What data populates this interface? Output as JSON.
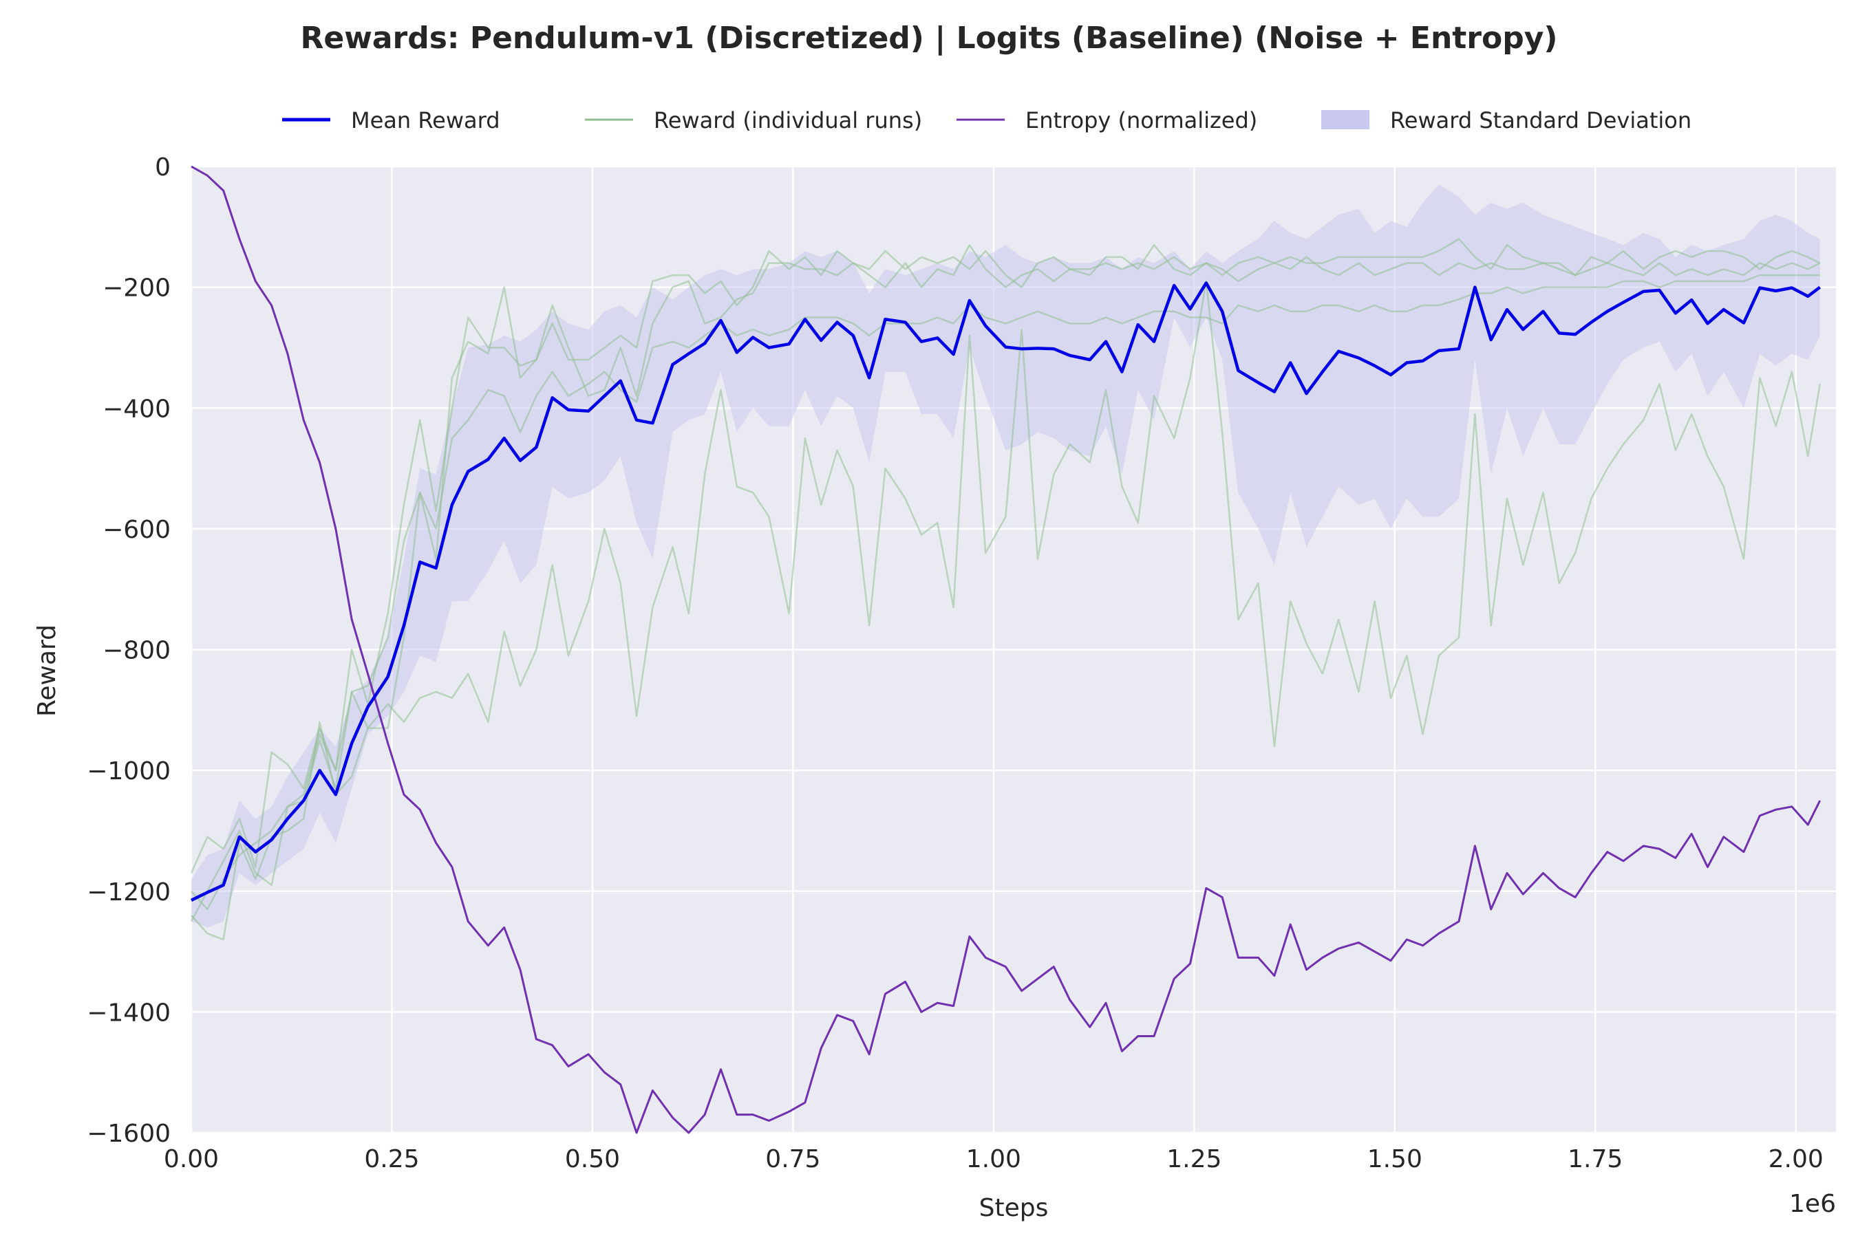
{
  "chart_data": {
    "type": "line",
    "title": "Rewards: Pendulum-v1 (Discretized) | Logits (Baseline) (Noise + Entropy)",
    "xlabel": "Steps",
    "ylabel": "Reward",
    "x_scale_label": "1e6",
    "xlim": [
      0,
      2050000
    ],
    "ylim": [
      -1600,
      0
    ],
    "x_ticks": [
      0,
      250000,
      500000,
      750000,
      1000000,
      1250000,
      1500000,
      1750000,
      2000000
    ],
    "x_tick_labels": [
      "0.00",
      "0.25",
      "0.50",
      "0.75",
      "1.00",
      "1.25",
      "1.50",
      "1.75",
      "2.00"
    ],
    "y_ticks": [
      0,
      -200,
      -400,
      -600,
      -800,
      -1000,
      -1200,
      -1400,
      -1600
    ],
    "y_tick_labels": [
      "0",
      "−200",
      "−400",
      "−600",
      "−800",
      "−1000",
      "−1200",
      "−1400",
      "−1600"
    ],
    "grid": true,
    "legend_placement": "top",
    "legend": [
      {
        "label": "Mean Reward",
        "kind": "line",
        "color": "#0000e6"
      },
      {
        "label": "Reward (individual runs)",
        "kind": "line",
        "color": "#8fbf8f"
      },
      {
        "label": "Entropy (normalized)",
        "kind": "line",
        "color": "#7030b0"
      },
      {
        "label": "Reward Standard Deviation",
        "kind": "band",
        "color": "#c8c8f0"
      }
    ],
    "x": [
      0,
      20000,
      40000,
      60000,
      80000,
      100000,
      120000,
      140000,
      160000,
      180000,
      200000,
      220000,
      245000,
      265000,
      285000,
      305000,
      325000,
      345000,
      370000,
      390000,
      410000,
      430000,
      450000,
      470000,
      495000,
      515000,
      535000,
      555000,
      575000,
      600000,
      620000,
      640000,
      660000,
      680000,
      700000,
      720000,
      745000,
      765000,
      785000,
      805000,
      825000,
      845000,
      865000,
      890000,
      910000,
      930000,
      950000,
      970000,
      990000,
      1015000,
      1035000,
      1055000,
      1075000,
      1095000,
      1120000,
      1140000,
      1160000,
      1180000,
      1200000,
      1225000,
      1245000,
      1265000,
      1285000,
      1305000,
      1330000,
      1350000,
      1370000,
      1390000,
      1410000,
      1430000,
      1455000,
      1475000,
      1495000,
      1515000,
      1535000,
      1555000,
      1580000,
      1600000,
      1620000,
      1640000,
      1660000,
      1685000,
      1705000,
      1725000,
      1745000,
      1765000,
      1785000,
      1810000,
      1830000,
      1850000,
      1870000,
      1890000,
      1910000,
      1935000,
      1955000,
      1975000,
      1995000,
      2015000,
      2030000
    ],
    "series": [
      {
        "name": "Mean Reward",
        "role": "mean",
        "color": "#0000e6",
        "values": [
          -1215,
          -1202,
          -1190,
          -1110,
          -1135,
          -1115,
          -1080,
          -1050,
          -1000,
          -1040,
          -955,
          -895,
          -845,
          -760,
          -655,
          -665,
          -560,
          -505,
          -485,
          -450,
          -487,
          -465,
          -383,
          -403,
          -405,
          -380,
          -355,
          -420,
          -425,
          -328,
          -310,
          -293,
          -255,
          -308,
          -283,
          -300,
          -294,
          -253,
          -288,
          -258,
          -280,
          -350,
          -253,
          -258,
          -290,
          -284,
          -311,
          -222,
          -264,
          -299,
          -302,
          -301,
          -302,
          -313,
          -320,
          -290,
          -340,
          -262,
          -290,
          -197,
          -236,
          -193,
          -240,
          -338,
          -358,
          -373,
          -325,
          -376,
          -340,
          -306,
          -317,
          -330,
          -345,
          -325,
          -322,
          -305,
          -302,
          -200,
          -287,
          -237,
          -270,
          -240,
          -276,
          -278,
          -258,
          -240,
          -225,
          -207,
          -205,
          -243,
          -221,
          -260,
          -237,
          -259,
          -201,
          -206,
          -201,
          -215,
          -200
        ]
      },
      {
        "name": "Reward Standard Deviation (upper)",
        "role": "std_upper",
        "color": "#c8c8f0",
        "values": [
          -1180,
          -1140,
          -1130,
          -1050,
          -1080,
          -1060,
          -1010,
          -970,
          -930,
          -960,
          -880,
          -850,
          -780,
          -650,
          -500,
          -510,
          -400,
          -300,
          -295,
          -280,
          -290,
          -270,
          -240,
          -260,
          -270,
          -240,
          -230,
          -250,
          -200,
          -220,
          -200,
          -180,
          -170,
          -180,
          -170,
          -170,
          -160,
          -140,
          -150,
          -140,
          -160,
          -210,
          -170,
          -180,
          -170,
          -160,
          -170,
          -140,
          -150,
          -130,
          -150,
          -160,
          -150,
          -160,
          -160,
          -150,
          -170,
          -150,
          -160,
          -140,
          -170,
          -140,
          -160,
          -140,
          -120,
          -90,
          -110,
          -120,
          -100,
          -80,
          -70,
          -110,
          -90,
          -100,
          -60,
          -30,
          -50,
          -80,
          -60,
          -70,
          -60,
          -80,
          -90,
          -100,
          -110,
          -120,
          -130,
          -110,
          -120,
          -150,
          -130,
          -140,
          -130,
          -120,
          -90,
          -80,
          -90,
          -110,
          -120
        ]
      },
      {
        "name": "Reward Standard Deviation (lower)",
        "role": "std_lower",
        "color": "#c8c8f0",
        "values": [
          -1250,
          -1260,
          -1250,
          -1170,
          -1190,
          -1170,
          -1150,
          -1130,
          -1070,
          -1120,
          -1030,
          -940,
          -910,
          -870,
          -810,
          -820,
          -720,
          -720,
          -670,
          -620,
          -690,
          -660,
          -530,
          -550,
          -540,
          -520,
          -480,
          -590,
          -650,
          -440,
          -420,
          -410,
          -340,
          -440,
          -400,
          -430,
          -430,
          -370,
          -430,
          -380,
          -400,
          -490,
          -340,
          -340,
          -410,
          -410,
          -450,
          -300,
          -380,
          -470,
          -460,
          -440,
          -450,
          -470,
          -480,
          -430,
          -510,
          -370,
          -420,
          -250,
          -300,
          -250,
          -320,
          -540,
          -600,
          -660,
          -540,
          -630,
          -580,
          -530,
          -560,
          -550,
          -600,
          -550,
          -580,
          -580,
          -550,
          -320,
          -510,
          -400,
          -480,
          -400,
          -460,
          -460,
          -410,
          -360,
          -320,
          -300,
          -290,
          -340,
          -310,
          -380,
          -340,
          -400,
          -310,
          -330,
          -310,
          -320,
          -280
        ]
      },
      {
        "name": "Reward (individual runs) 1",
        "role": "run",
        "color": "#8fbf8f",
        "values": [
          -1170,
          -1110,
          -1130,
          -1080,
          -1160,
          -970,
          -990,
          -1030,
          -930,
          -1000,
          -800,
          -890,
          -740,
          -560,
          -420,
          -570,
          -400,
          -250,
          -300,
          -300,
          -330,
          -320,
          -230,
          -300,
          -380,
          -370,
          -300,
          -380,
          -260,
          -200,
          -190,
          -260,
          -250,
          -220,
          -210,
          -160,
          -160,
          -170,
          -170,
          -180,
          -160,
          -180,
          -200,
          -160,
          -200,
          -170,
          -180,
          -130,
          -170,
          -200,
          -180,
          -170,
          -190,
          -170,
          -180,
          -150,
          -150,
          -170,
          -130,
          -170,
          -180,
          -160,
          -170,
          -190,
          -170,
          -160,
          -150,
          -160,
          -160,
          -150,
          -150,
          -150,
          -150,
          -150,
          -150,
          -140,
          -120,
          -150,
          -170,
          -130,
          -150,
          -160,
          -170,
          -180,
          -150,
          -160,
          -140,
          -170,
          -150,
          -140,
          -150,
          -140,
          -140,
          -150,
          -170,
          -150,
          -140,
          -150,
          -160
        ]
      },
      {
        "name": "Reward (individual runs) 2",
        "role": "run",
        "color": "#8fbf8f",
        "values": [
          -1250,
          -1200,
          -1150,
          -1100,
          -1170,
          -1190,
          -1060,
          -1050,
          -950,
          -1030,
          -870,
          -930,
          -930,
          -780,
          -540,
          -650,
          -350,
          -290,
          -310,
          -200,
          -350,
          -320,
          -260,
          -320,
          -320,
          -300,
          -280,
          -300,
          -190,
          -180,
          -180,
          -210,
          -190,
          -230,
          -200,
          -140,
          -170,
          -150,
          -180,
          -140,
          -160,
          -170,
          -140,
          -170,
          -150,
          -160,
          -150,
          -170,
          -140,
          -180,
          -200,
          -160,
          -150,
          -170,
          -170,
          -160,
          -170,
          -160,
          -170,
          -150,
          -170,
          -160,
          -180,
          -160,
          -150,
          -160,
          -170,
          -150,
          -170,
          -180,
          -160,
          -180,
          -170,
          -160,
          -160,
          -180,
          -160,
          -170,
          -160,
          -170,
          -170,
          -160,
          -160,
          -180,
          -170,
          -160,
          -170,
          -180,
          -160,
          -180,
          -170,
          -180,
          -170,
          -180,
          -160,
          -170,
          -160,
          -170,
          -160
        ]
      },
      {
        "name": "Reward (individual runs) 3",
        "role": "run",
        "color": "#8fbf8f",
        "values": [
          -1240,
          -1270,
          -1280,
          -1120,
          -1180,
          -1110,
          -1100,
          -1080,
          -920,
          -1040,
          -1010,
          -930,
          -890,
          -920,
          -880,
          -870,
          -880,
          -840,
          -920,
          -770,
          -860,
          -800,
          -660,
          -810,
          -720,
          -600,
          -690,
          -910,
          -730,
          -630,
          -740,
          -510,
          -370,
          -530,
          -540,
          -580,
          -740,
          -450,
          -560,
          -470,
          -530,
          -760,
          -500,
          -550,
          -610,
          -590,
          -730,
          -280,
          -640,
          -580,
          -270,
          -650,
          -510,
          -460,
          -490,
          -370,
          -530,
          -590,
          -380,
          -450,
          -350,
          -190,
          -440,
          -750,
          -690,
          -960,
          -720,
          -790,
          -840,
          -750,
          -870,
          -720,
          -880,
          -810,
          -940,
          -810,
          -780,
          -410,
          -760,
          -550,
          -660,
          -540,
          -690,
          -640,
          -550,
          -500,
          -460,
          -420,
          -360,
          -470,
          -410,
          -480,
          -530,
          -650,
          -350,
          -430,
          -340,
          -480,
          -360
        ]
      },
      {
        "name": "Reward (individual runs) 4",
        "role": "run",
        "color": "#8fbf8f",
        "values": [
          -1200,
          -1230,
          -1180,
          -1140,
          -1120,
          -1100,
          -1060,
          -1040,
          -940,
          -1000,
          -870,
          -860,
          -780,
          -620,
          -540,
          -600,
          -450,
          -420,
          -370,
          -380,
          -440,
          -380,
          -340,
          -380,
          -360,
          -340,
          -370,
          -390,
          -300,
          -290,
          -300,
          -280,
          -260,
          -280,
          -270,
          -280,
          -270,
          -250,
          -250,
          -250,
          -260,
          -280,
          -260,
          -260,
          -260,
          -250,
          -260,
          -230,
          -250,
          -260,
          -250,
          -240,
          -250,
          -260,
          -260,
          -250,
          -260,
          -250,
          -240,
          -240,
          -250,
          -250,
          -260,
          -230,
          -240,
          -230,
          -240,
          -240,
          -230,
          -230,
          -240,
          -230,
          -240,
          -240,
          -230,
          -230,
          -220,
          -210,
          -210,
          -200,
          -210,
          -200,
          -200,
          -200,
          -200,
          -200,
          -190,
          -190,
          -200,
          -190,
          -190,
          -190,
          -190,
          -190,
          -180,
          -180,
          -180,
          -180,
          -180
        ]
      },
      {
        "name": "Entropy (normalized)",
        "role": "entropy",
        "color": "#7030b0",
        "values": [
          0,
          -15,
          -40,
          -120,
          -190,
          -230,
          -310,
          -420,
          -490,
          -600,
          -750,
          -840,
          -955,
          -1040,
          -1065,
          -1120,
          -1160,
          -1250,
          -1290,
          -1260,
          -1330,
          -1445,
          -1455,
          -1490,
          -1470,
          -1500,
          -1520,
          -1600,
          -1530,
          -1575,
          -1600,
          -1570,
          -1495,
          -1570,
          -1570,
          -1580,
          -1565,
          -1550,
          -1460,
          -1405,
          -1415,
          -1470,
          -1370,
          -1350,
          -1400,
          -1385,
          -1390,
          -1275,
          -1310,
          -1325,
          -1365,
          -1345,
          -1325,
          -1380,
          -1425,
          -1385,
          -1465,
          -1440,
          -1440,
          -1345,
          -1320,
          -1195,
          -1210,
          -1310,
          -1310,
          -1340,
          -1255,
          -1330,
          -1310,
          -1295,
          -1285,
          -1300,
          -1315,
          -1280,
          -1290,
          -1270,
          -1250,
          -1125,
          -1230,
          -1170,
          -1205,
          -1170,
          -1195,
          -1210,
          -1170,
          -1135,
          -1150,
          -1125,
          -1130,
          -1145,
          -1105,
          -1160,
          -1110,
          -1135,
          -1075,
          -1065,
          -1060,
          -1090,
          -1050
        ]
      }
    ]
  }
}
